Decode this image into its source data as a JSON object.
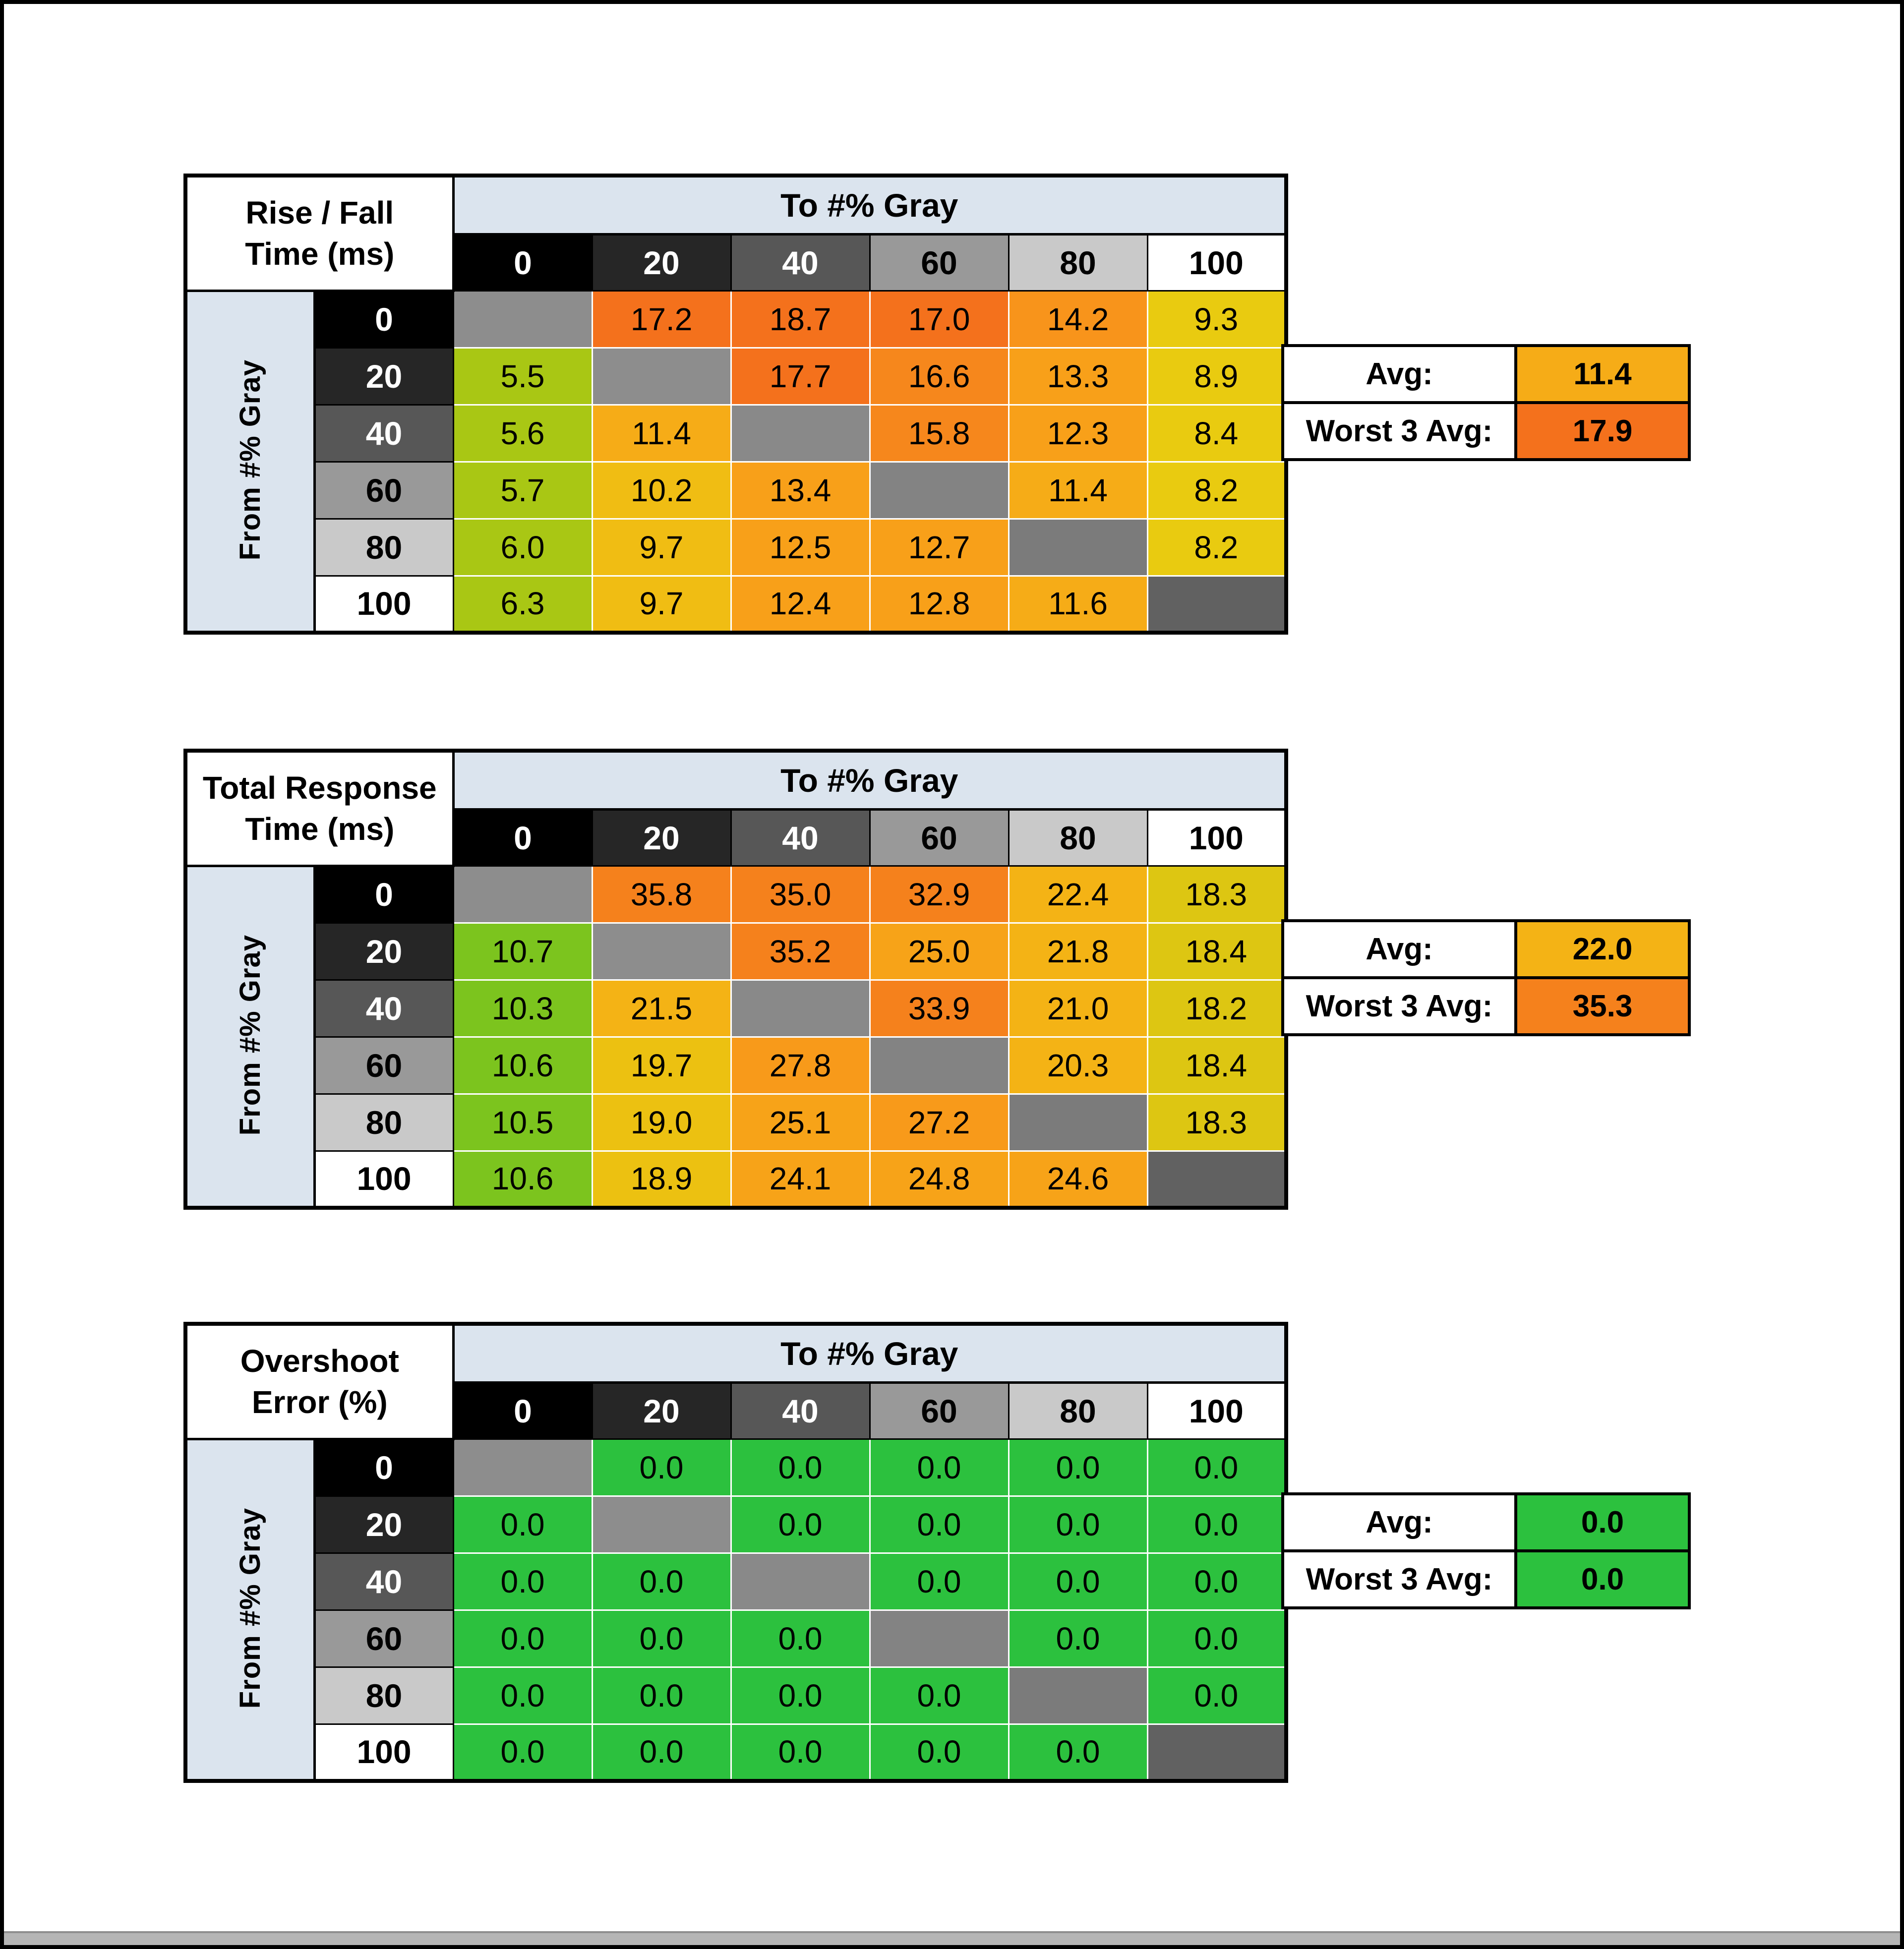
{
  "page": {
    "bg": "#ffffff",
    "frame_color": "#000000",
    "bottom_strip_color": "#b5b5b5"
  },
  "palette": {
    "header_blue": "#dbe4ee",
    "diag_gray": "#8d8d8d"
  },
  "axis": {
    "to_label": "To #% Gray",
    "from_label": "From #% Gray",
    "levels": [
      {
        "label": "0",
        "bg": "#000000",
        "fg": "#ffffff"
      },
      {
        "label": "20",
        "bg": "#262626",
        "fg": "#ffffff"
      },
      {
        "label": "40",
        "bg": "#575757",
        "fg": "#ffffff"
      },
      {
        "label": "60",
        "bg": "#999999",
        "fg": "#000000"
      },
      {
        "label": "80",
        "bg": "#c9c9c9",
        "fg": "#000000"
      },
      {
        "label": "100",
        "bg": "#ffffff",
        "fg": "#000000"
      }
    ]
  },
  "tables": [
    {
      "title1": "Rise / Fall",
      "title2": "Time (ms)",
      "summary": {
        "avg_label": "Avg:",
        "avg_value": "11.4",
        "avg_color": "#f6ac17",
        "worst_label": "Worst 3 Avg:",
        "worst_value": "17.9",
        "worst_color": "#f4711c"
      },
      "cell_colors": [
        [
          "#8d8d8d",
          "#f4711c",
          "#f4711c",
          "#f4711c",
          "#f8941b",
          "#e9cb10"
        ],
        [
          "#a9c714",
          "#8d8d8d",
          "#f4711c",
          "#f6871c",
          "#f8a019",
          "#e9cb10"
        ],
        [
          "#a9c714",
          "#f6ac17",
          "#898989",
          "#f6871c",
          "#f8a019",
          "#e9cb10"
        ],
        [
          "#a9c714",
          "#f0bd13",
          "#f8a019",
          "#838383",
          "#f6ac17",
          "#e9cb10"
        ],
        [
          "#a9c714",
          "#f0bd13",
          "#f8a019",
          "#f8a019",
          "#7b7b7b",
          "#e9cb10"
        ],
        [
          "#a9c714",
          "#f0bd13",
          "#f8a019",
          "#f8a019",
          "#f6ac17",
          "#616161"
        ]
      ]
    },
    {
      "title1": "Total Response",
      "title2": "Time (ms)",
      "summary": {
        "avg_label": "Avg:",
        "avg_value": "22.0",
        "avg_color": "#f4b315",
        "worst_label": "Worst 3 Avg:",
        "worst_value": "35.3",
        "worst_color": "#f5811c"
      },
      "cell_colors": [
        [
          "#8d8d8d",
          "#f5811c",
          "#f5811c",
          "#f5811c",
          "#f4b315",
          "#ddc612"
        ],
        [
          "#7cc41e",
          "#8d8d8d",
          "#f5811c",
          "#f7a318",
          "#f4b315",
          "#ddc612"
        ],
        [
          "#7cc41e",
          "#f4b315",
          "#898989",
          "#f5811c",
          "#f4b315",
          "#ddc612"
        ],
        [
          "#7cc41e",
          "#ecc111",
          "#f89a1a",
          "#838383",
          "#f4b315",
          "#ddc612"
        ],
        [
          "#7cc41e",
          "#ecc111",
          "#f7a318",
          "#f89a1a",
          "#7b7b7b",
          "#ddc612"
        ],
        [
          "#7cc41e",
          "#ecc111",
          "#f7a318",
          "#f7a318",
          "#f7a318",
          "#616161"
        ]
      ]
    },
    {
      "title1": "Overshoot",
      "title2": "Error (%)",
      "summary": {
        "avg_label": "Avg:",
        "avg_value": "0.0",
        "avg_color": "#2cc13e",
        "worst_label": "Worst 3 Avg:",
        "worst_value": "0.0",
        "worst_color": "#2cc13e"
      },
      "cell_colors": [
        [
          "#8d8d8d",
          "#2cc13e",
          "#2cc13e",
          "#2cc13e",
          "#2cc13e",
          "#2cc13e"
        ],
        [
          "#2cc13e",
          "#8d8d8d",
          "#2cc13e",
          "#2cc13e",
          "#2cc13e",
          "#2cc13e"
        ],
        [
          "#2cc13e",
          "#2cc13e",
          "#898989",
          "#2cc13e",
          "#2cc13e",
          "#2cc13e"
        ],
        [
          "#2cc13e",
          "#2cc13e",
          "#2cc13e",
          "#838383",
          "#2cc13e",
          "#2cc13e"
        ],
        [
          "#2cc13e",
          "#2cc13e",
          "#2cc13e",
          "#2cc13e",
          "#7b7b7b",
          "#2cc13e"
        ],
        [
          "#2cc13e",
          "#2cc13e",
          "#2cc13e",
          "#2cc13e",
          "#2cc13e",
          "#616161"
        ]
      ]
    }
  ],
  "chart_data": [
    {
      "type": "heatmap",
      "title": "Rise / Fall Time (ms)",
      "x_label": "To #% Gray",
      "y_label": "From #% Gray",
      "x": [
        0,
        20,
        40,
        60,
        80,
        100
      ],
      "y": [
        0,
        20,
        40,
        60,
        80,
        100
      ],
      "values": [
        [
          null,
          17.2,
          18.7,
          17.0,
          14.2,
          9.3
        ],
        [
          5.5,
          null,
          17.7,
          16.6,
          13.3,
          8.9
        ],
        [
          5.6,
          11.4,
          null,
          15.8,
          12.3,
          8.4
        ],
        [
          5.7,
          10.2,
          13.4,
          null,
          11.4,
          8.2
        ],
        [
          6.0,
          9.7,
          12.5,
          12.7,
          null,
          8.2
        ],
        [
          6.3,
          9.7,
          12.4,
          12.8,
          11.6,
          null
        ]
      ],
      "avg": 11.4,
      "worst_3_avg": 17.9
    },
    {
      "type": "heatmap",
      "title": "Total Response Time (ms)",
      "x_label": "To #% Gray",
      "y_label": "From #% Gray",
      "x": [
        0,
        20,
        40,
        60,
        80,
        100
      ],
      "y": [
        0,
        20,
        40,
        60,
        80,
        100
      ],
      "values": [
        [
          null,
          35.8,
          35.0,
          32.9,
          22.4,
          18.3
        ],
        [
          10.7,
          null,
          35.2,
          25.0,
          21.8,
          18.4
        ],
        [
          10.3,
          21.5,
          null,
          33.9,
          21.0,
          18.2
        ],
        [
          10.6,
          19.7,
          27.8,
          null,
          20.3,
          18.4
        ],
        [
          10.5,
          19.0,
          25.1,
          27.2,
          null,
          18.3
        ],
        [
          10.6,
          18.9,
          24.1,
          24.8,
          24.6,
          null
        ]
      ],
      "avg": 22.0,
      "worst_3_avg": 35.3
    },
    {
      "type": "heatmap",
      "title": "Overshoot Error (%)",
      "x_label": "To #% Gray",
      "y_label": "From #% Gray",
      "x": [
        0,
        20,
        40,
        60,
        80,
        100
      ],
      "y": [
        0,
        20,
        40,
        60,
        80,
        100
      ],
      "values": [
        [
          null,
          0.0,
          0.0,
          0.0,
          0.0,
          0.0
        ],
        [
          0.0,
          null,
          0.0,
          0.0,
          0.0,
          0.0
        ],
        [
          0.0,
          0.0,
          null,
          0.0,
          0.0,
          0.0
        ],
        [
          0.0,
          0.0,
          0.0,
          null,
          0.0,
          0.0
        ],
        [
          0.0,
          0.0,
          0.0,
          0.0,
          null,
          0.0
        ],
        [
          0.0,
          0.0,
          0.0,
          0.0,
          0.0,
          null
        ]
      ],
      "avg": 0.0,
      "worst_3_avg": 0.0
    }
  ]
}
